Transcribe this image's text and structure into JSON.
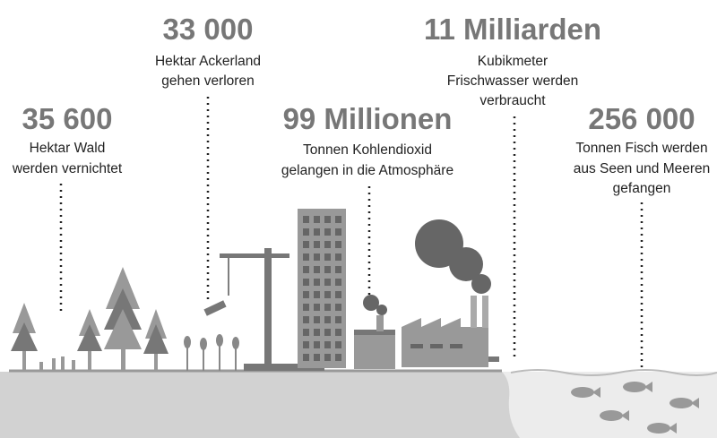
{
  "items": [
    {
      "number": "35 600",
      "lines": [
        "Hektar Wald",
        "werden vernichtet"
      ]
    },
    {
      "number": "33 000",
      "lines": [
        "Hektar Ackerland",
        "gehen verloren"
      ]
    },
    {
      "number": "99 Millionen",
      "lines": [
        "Tonnen Kohlendioxid",
        "gelangen in die Atmosphäre"
      ]
    },
    {
      "number": "11 Milliarden",
      "lines": [
        "Kubikmeter",
        "Frischwasser werden",
        "verbraucht"
      ]
    },
    {
      "number": "256 000",
      "lines": [
        "Tonnen Fisch werden",
        "aus Seen und Meeren",
        "gefangen"
      ]
    }
  ]
}
